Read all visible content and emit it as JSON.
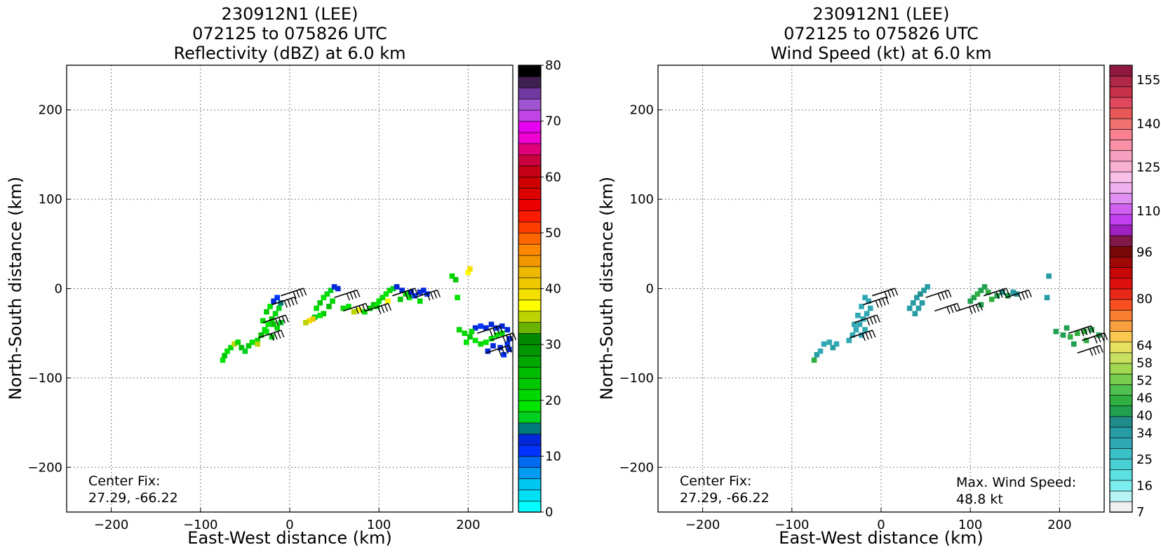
{
  "chart_data": [
    {
      "type": "heatmap",
      "title_lines": [
        "230912N1 (LEE)",
        "072125 to 075826 UTC",
        "Reflectivity (dBZ) at 6.0 km"
      ],
      "xlabel": "East-West distance (km)",
      "ylabel": "North-South distance (km)",
      "xlim": [
        -250,
        250
      ],
      "ylim": [
        -250,
        250
      ],
      "xticks": [
        -200,
        -100,
        0,
        100,
        200
      ],
      "yticks": [
        -200,
        -100,
        0,
        100,
        200
      ],
      "grid": true,
      "annotations": [
        {
          "lines": [
            "Center Fix:",
            "27.29, -66.22"
          ],
          "position": "bottom-left"
        }
      ],
      "colorbar": {
        "min": 0,
        "max": 80,
        "ticks": [
          0,
          10,
          20,
          30,
          40,
          50,
          60,
          70,
          80
        ],
        "colors": [
          "#00ffff",
          "#00e0f4",
          "#00c6f2",
          "#009cf2",
          "#006bf0",
          "#0033ff",
          "#0028d8",
          "#007a7a",
          "#00d020",
          "#00e400",
          "#00d800",
          "#00c800",
          "#00bc00",
          "#00a800",
          "#009600",
          "#008800",
          "#6ab400",
          "#bcd400",
          "#ffff00",
          "#f4e000",
          "#eec800",
          "#ecb800",
          "#f29600",
          "#ff8800",
          "#ff6600",
          "#ff3c00",
          "#ff1a00",
          "#ee0000",
          "#dc0000",
          "#cc0000",
          "#c40014",
          "#c8003e",
          "#e0007a",
          "#f000d0",
          "#e800f0",
          "#c045e6",
          "#a055d0",
          "#7038a0",
          "#402050",
          "#000000"
        ]
      },
      "cells_xy_value": [
        [
          -75,
          -80,
          19
        ],
        [
          -73,
          -75,
          22
        ],
        [
          -70,
          -70,
          18
        ],
        [
          -66,
          -66,
          21
        ],
        [
          -62,
          -62,
          35
        ],
        [
          -58,
          -60,
          20
        ],
        [
          -54,
          -66,
          24
        ],
        [
          -50,
          -70,
          17
        ],
        [
          -46,
          -64,
          22
        ],
        [
          -42,
          -60,
          19
        ],
        [
          -36,
          -58,
          21
        ],
        [
          -32,
          -52,
          24
        ],
        [
          -28,
          -46,
          20
        ],
        [
          -24,
          -40,
          18
        ],
        [
          -20,
          -34,
          22
        ],
        [
          -16,
          -28,
          20
        ],
        [
          -12,
          -22,
          16
        ],
        [
          -10,
          -16,
          14
        ],
        [
          -14,
          -10,
          11
        ],
        [
          -18,
          -14,
          12
        ],
        [
          -22,
          -20,
          19
        ],
        [
          -26,
          -26,
          22
        ],
        [
          -18,
          -40,
          24
        ],
        [
          -14,
          -44,
          20
        ],
        [
          -10,
          -38,
          17
        ],
        [
          -30,
          -36,
          21
        ],
        [
          -26,
          -48,
          19
        ],
        [
          -20,
          -54,
          22
        ],
        [
          -36,
          -62,
          34
        ],
        [
          30,
          -22,
          20
        ],
        [
          34,
          -16,
          22
        ],
        [
          38,
          -10,
          18
        ],
        [
          42,
          -6,
          21
        ],
        [
          46,
          -2,
          16
        ],
        [
          50,
          2,
          12
        ],
        [
          54,
          0,
          13
        ],
        [
          48,
          -14,
          20
        ],
        [
          44,
          -20,
          24
        ],
        [
          38,
          -28,
          22
        ],
        [
          34,
          -30,
          19
        ],
        [
          28,
          -32,
          17
        ],
        [
          22,
          -36,
          38
        ],
        [
          18,
          -38,
          35
        ],
        [
          26,
          -34,
          40
        ],
        [
          60,
          -22,
          21
        ],
        [
          66,
          -20,
          18
        ],
        [
          72,
          -26,
          34
        ],
        [
          78,
          -24,
          37
        ],
        [
          84,
          -26,
          20
        ],
        [
          90,
          -22,
          22
        ],
        [
          94,
          -18,
          23
        ],
        [
          100,
          -14,
          19
        ],
        [
          104,
          -10,
          21
        ],
        [
          108,
          -6,
          18
        ],
        [
          112,
          -2,
          20
        ],
        [
          116,
          0,
          17
        ],
        [
          120,
          2,
          12
        ],
        [
          126,
          -2,
          13
        ],
        [
          130,
          -6,
          21
        ],
        [
          136,
          -4,
          12
        ],
        [
          140,
          -8,
          11
        ],
        [
          146,
          -4,
          12
        ],
        [
          150,
          -2,
          13
        ],
        [
          154,
          -6,
          11
        ],
        [
          146,
          -14,
          20
        ],
        [
          134,
          -10,
          19
        ],
        [
          124,
          -12,
          22
        ],
        [
          110,
          -14,
          36
        ],
        [
          98,
          -20,
          18
        ],
        [
          188,
          -10,
          19
        ],
        [
          182,
          14,
          20
        ],
        [
          186,
          10,
          22
        ],
        [
          200,
          18,
          37
        ],
        [
          202,
          22,
          38
        ],
        [
          190,
          -46,
          21
        ],
        [
          196,
          -50,
          20
        ],
        [
          202,
          -54,
          22
        ],
        [
          208,
          -58,
          19
        ],
        [
          214,
          -62,
          21
        ],
        [
          220,
          -60,
          18
        ],
        [
          226,
          -56,
          20
        ],
        [
          232,
          -52,
          19
        ],
        [
          238,
          -50,
          21
        ],
        [
          208,
          -44,
          12
        ],
        [
          214,
          -42,
          11
        ],
        [
          220,
          -44,
          13
        ],
        [
          226,
          -40,
          12
        ],
        [
          232,
          -44,
          11
        ],
        [
          238,
          -42,
          12
        ],
        [
          244,
          -46,
          13
        ],
        [
          246,
          -56,
          12
        ],
        [
          244,
          -62,
          11
        ],
        [
          236,
          -66,
          12
        ],
        [
          228,
          -64,
          13
        ],
        [
          222,
          -70,
          12
        ],
        [
          240,
          -74,
          11
        ],
        [
          246,
          -68,
          12
        ],
        [
          198,
          -60,
          19
        ],
        [
          204,
          -48,
          20
        ]
      ],
      "barbs": [
        {
          "x": -30,
          "y": -38
        },
        {
          "x": -20,
          "y": -18
        },
        {
          "x": -35,
          "y": -55
        },
        {
          "x": -10,
          "y": -8
        },
        {
          "x": 50,
          "y": -10
        },
        {
          "x": 60,
          "y": -25
        },
        {
          "x": 85,
          "y": -25
        },
        {
          "x": 115,
          "y": -8
        },
        {
          "x": 140,
          "y": -10
        },
        {
          "x": 210,
          "y": -50
        },
        {
          "x": 225,
          "y": -58
        },
        {
          "x": 220,
          "y": -72
        }
      ]
    },
    {
      "type": "heatmap",
      "title_lines": [
        "230912N1 (LEE)",
        "072125 to 075826 UTC",
        "Wind Speed (kt) at 6.0 km"
      ],
      "xlabel": "East-West distance (km)",
      "ylabel": "North-South distance (km)",
      "xlim": [
        -250,
        250
      ],
      "ylim": [
        -250,
        250
      ],
      "xticks": [
        -200,
        -100,
        0,
        100,
        200
      ],
      "yticks": [
        -200,
        -100,
        0,
        100,
        200
      ],
      "grid": true,
      "annotations": [
        {
          "lines": [
            "Center Fix:",
            "27.29, -66.22"
          ],
          "position": "bottom-left"
        },
        {
          "lines": [
            "Max. Wind Speed:",
            "48.8 kt"
          ],
          "position": "bottom-right"
        }
      ],
      "colorbar": {
        "min": 7,
        "max": 160,
        "tick_labels": [
          "7",
          "16",
          "25",
          "34",
          "40",
          "46",
          "52",
          "58",
          "64",
          "80",
          "96",
          "110",
          "125",
          "140",
          "155"
        ],
        "tick_values": [
          7,
          16,
          25,
          34,
          40,
          46,
          52,
          58,
          64,
          80,
          96,
          110,
          125,
          140,
          155
        ],
        "colors": [
          "#f0f0f0",
          "#b8f4f4",
          "#7ceeee",
          "#5ae0e0",
          "#48d0d4",
          "#3cc0c8",
          "#30a8b4",
          "#289ca4",
          "#208c8c",
          "#20a050",
          "#30b040",
          "#50c050",
          "#78cc50",
          "#a0d850",
          "#c8e060",
          "#e8e060",
          "#f8c850",
          "#f8a040",
          "#f88030",
          "#f85020",
          "#e82818",
          "#e01010",
          "#c80808",
          "#a00808",
          "#780808",
          "#801848",
          "#a020c0",
          "#c040f0",
          "#d060f0",
          "#e090f0",
          "#f0b0f0",
          "#f8c0e8",
          "#f8b0d0",
          "#f8a0c0",
          "#f890a8",
          "#f88090",
          "#f07070",
          "#e85858",
          "#e04860",
          "#c83048",
          "#b02848",
          "#901840"
        ]
      },
      "cells_xy_value": [
        [
          -75,
          -80,
          44
        ],
        [
          -72,
          -74,
          36
        ],
        [
          -68,
          -70,
          30
        ],
        [
          -64,
          -62,
          32
        ],
        [
          -58,
          -60,
          30
        ],
        [
          -54,
          -66,
          36
        ],
        [
          -50,
          -62,
          30
        ],
        [
          -36,
          -58,
          30
        ],
        [
          -32,
          -52,
          31
        ],
        [
          -28,
          -46,
          30
        ],
        [
          -24,
          -40,
          30
        ],
        [
          -20,
          -34,
          31
        ],
        [
          -16,
          -28,
          30
        ],
        [
          -12,
          -22,
          30
        ],
        [
          -14,
          -14,
          30
        ],
        [
          -18,
          -10,
          31
        ],
        [
          -22,
          -20,
          30
        ],
        [
          -26,
          -30,
          30
        ],
        [
          -30,
          -40,
          31
        ],
        [
          -18,
          -46,
          30
        ],
        [
          -22,
          -52,
          30
        ],
        [
          32,
          -22,
          34
        ],
        [
          36,
          -16,
          36
        ],
        [
          40,
          -10,
          35
        ],
        [
          44,
          -6,
          38
        ],
        [
          48,
          -2,
          36
        ],
        [
          52,
          2,
          34
        ],
        [
          46,
          -16,
          35
        ],
        [
          42,
          -22,
          34
        ],
        [
          38,
          -28,
          36
        ],
        [
          100,
          -14,
          40
        ],
        [
          104,
          -10,
          42
        ],
        [
          108,
          -6,
          44
        ],
        [
          112,
          -2,
          42
        ],
        [
          116,
          2,
          40
        ],
        [
          120,
          -4,
          46
        ],
        [
          124,
          -12,
          44
        ],
        [
          130,
          -8,
          40
        ],
        [
          136,
          -4,
          38
        ],
        [
          142,
          -8,
          40
        ],
        [
          148,
          -4,
          36
        ],
        [
          152,
          -6,
          38
        ],
        [
          112,
          -18,
          42
        ],
        [
          186,
          -10,
          34
        ],
        [
          188,
          14,
          36
        ],
        [
          196,
          -48,
          40
        ],
        [
          204,
          -52,
          42
        ],
        [
          212,
          -54,
          44
        ],
        [
          220,
          -50,
          46
        ],
        [
          228,
          -48,
          44
        ],
        [
          236,
          -46,
          42
        ],
        [
          244,
          -52,
          40
        ],
        [
          216,
          -62,
          42
        ],
        [
          230,
          -58,
          44
        ],
        [
          208,
          -44,
          40
        ]
      ],
      "barbs": [
        {
          "x": -30,
          "y": -38
        },
        {
          "x": -20,
          "y": -18
        },
        {
          "x": -35,
          "y": -55
        },
        {
          "x": -10,
          "y": -8
        },
        {
          "x": 50,
          "y": -10
        },
        {
          "x": 60,
          "y": -25
        },
        {
          "x": 85,
          "y": -25
        },
        {
          "x": 115,
          "y": -8
        },
        {
          "x": 140,
          "y": -10
        },
        {
          "x": 210,
          "y": -50
        },
        {
          "x": 225,
          "y": -58
        },
        {
          "x": 220,
          "y": -72
        }
      ]
    }
  ]
}
